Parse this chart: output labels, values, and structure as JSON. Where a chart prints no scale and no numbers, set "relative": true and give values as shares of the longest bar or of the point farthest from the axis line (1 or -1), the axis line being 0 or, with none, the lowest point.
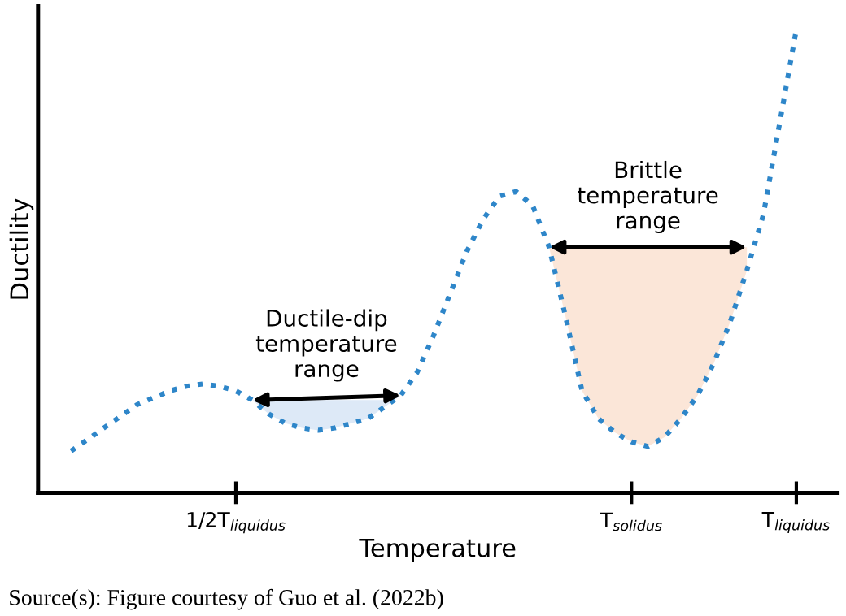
{
  "chart_data": {
    "type": "line",
    "relative": true,
    "xlabel": "Temperature",
    "ylabel": "Ductility",
    "categories": [
      null,
      null,
      null,
      null,
      null,
      null,
      null,
      null,
      null,
      null,
      "1/2T$_{liquidus}$",
      null,
      null,
      null,
      null,
      null,
      null,
      null,
      null,
      null,
      null,
      null,
      null,
      null,
      null,
      null,
      null,
      null,
      null,
      null,
      null,
      null,
      null,
      null,
      "T$_{solidus}$",
      null,
      null,
      null,
      null,
      null,
      null,
      null,
      null,
      null,
      "T$_{liquidus}$"
    ],
    "series": [
      {
        "color": "#2e86c9",
        "values": [
          0.09,
          0.115,
          0.14,
          0.165,
          0.19,
          0.205,
          0.22,
          0.23,
          0.235,
          0.23,
          0.22,
          0.2,
          0.17,
          0.15,
          0.14,
          0.135,
          0.14,
          0.15,
          0.16,
          0.185,
          0.21,
          0.26,
          0.34,
          0.43,
          0.52,
          0.59,
          0.64,
          0.65,
          0.62,
          0.53,
          0.38,
          0.22,
          0.16,
          0.13,
          0.11,
          0.1,
          0.12,
          0.16,
          0.21,
          0.28,
          0.37,
          0.48,
          0.6,
          0.8,
          1.0
        ]
      },
      {
        "type": "area",
        "name": "Ductile-dip\ntemperature\nrange",
        "color": "#dde9f7",
        "values": [
          null,
          null,
          null,
          null,
          null,
          null,
          null,
          null,
          null,
          null,
          null,
          0.2,
          0.2,
          0.2,
          0.2,
          0.2,
          0.2,
          0.2,
          0.2,
          0.2,
          0.21,
          null,
          null,
          null,
          null,
          null,
          null,
          null,
          null,
          null,
          null,
          null,
          null,
          null,
          null,
          null,
          null,
          null,
          null,
          null,
          null,
          null,
          null,
          null,
          null
        ]
      },
      {
        "type": "area",
        "name": "Brittle\ntemperature\nrange",
        "color": "#fbe6d8",
        "values": [
          null,
          null,
          null,
          null,
          null,
          null,
          null,
          null,
          null,
          null,
          null,
          null,
          null,
          null,
          null,
          null,
          null,
          null,
          null,
          null,
          null,
          null,
          null,
          null,
          null,
          null,
          null,
          null,
          null,
          0.53,
          0.53,
          0.53,
          0.53,
          0.53,
          0.53,
          0.53,
          0.53,
          0.53,
          0.53,
          0.53,
          0.53,
          0.53,
          null,
          null,
          null
        ]
      }
    ],
    "tick_labels": "x",
    "line_style": "dotted",
    "marker": "none",
    "grid": false,
    "legend": false,
    "annotations": [
      "Source(s): Figure courtesy of Guo et al. (2022b)"
    ]
  }
}
